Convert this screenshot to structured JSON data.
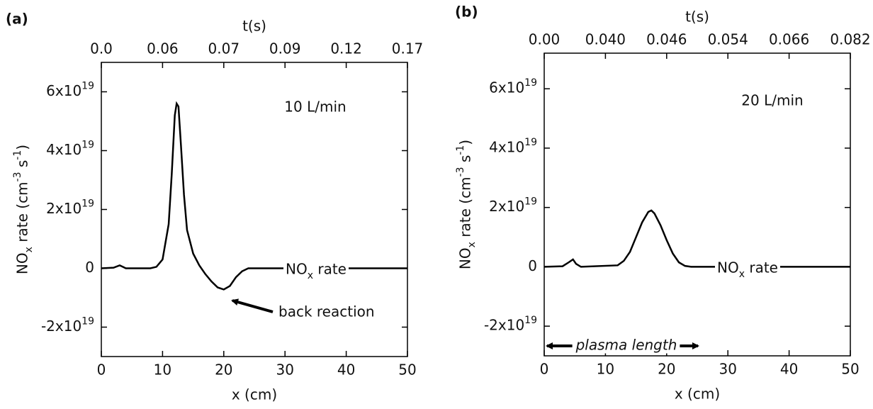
{
  "chart_data": [
    {
      "type": "line",
      "panel_label": "(a)",
      "xlabel": "x (cm)",
      "ylabel": "NO_x rate (cm^-3 s^-1)",
      "x2label": "t(s)",
      "x": [
        0,
        2,
        3,
        3.5,
        4,
        8,
        9,
        10,
        11,
        11.5,
        12,
        12.3,
        12.6,
        13,
        13.5,
        14,
        15,
        16,
        17,
        18,
        19,
        20,
        21,
        22,
        23,
        24,
        25,
        50
      ],
      "series": [
        {
          "name": "NO_x rate",
          "color": "#000000",
          "values": [
            0,
            2e+17,
            1e+18,
            5e+17,
            0,
            0,
            5e+17,
            3e+18,
            1.5e+19,
            3.2e+19,
            5.2e+19,
            5.6e+19,
            5.5e+19,
            4.2e+19,
            2.5e+19,
            1.3e+19,
            5e+18,
            1e+18,
            -2e+18,
            -4.5e+18,
            -6.5e+18,
            -7.2e+18,
            -6e+18,
            -3e+18,
            -1e+18,
            0,
            0,
            0
          ]
        }
      ],
      "xlim": [
        0,
        50
      ],
      "xticks": [
        0,
        10,
        20,
        30,
        40,
        50
      ],
      "x2tick_labels": [
        "0.0",
        "0.06",
        "0.07",
        "0.09",
        "0.12",
        "0.17"
      ],
      "ylim": [
        -3e+19,
        7e+19
      ],
      "yticks": [
        {
          "value": -2e+19,
          "label": "-2x10^19"
        },
        {
          "value": 0,
          "label": "0"
        },
        {
          "value": 2e+19,
          "label": "2x10^19"
        },
        {
          "value": 4e+19,
          "label": "4x10^19"
        },
        {
          "value": 6e+19,
          "label": "6x10^19"
        }
      ],
      "annotations": [
        "10 L/min",
        "back reaction"
      ]
    },
    {
      "type": "line",
      "panel_label": "(b)",
      "xlabel": "x (cm)",
      "ylabel": "NO_x rate (cm^-3 s^-1)",
      "x2label": "t(s)",
      "x": [
        0,
        3,
        4,
        4.7,
        5.2,
        6,
        12,
        13,
        14,
        15,
        16,
        17,
        17.5,
        18,
        19,
        20,
        21,
        22,
        23,
        24,
        50
      ],
      "series": [
        {
          "name": "NO_x rate",
          "color": "#000000",
          "values": [
            0,
            2e+17,
            1.5e+18,
            2.5e+18,
            1e+18,
            0,
            5e+17,
            2e+18,
            5e+18,
            1e+19,
            1.5e+19,
            1.85e+19,
            1.9e+19,
            1.8e+19,
            1.4e+19,
            9e+18,
            4.5e+18,
            1.5e+18,
            3e+17,
            0,
            0
          ]
        }
      ],
      "xlim": [
        0,
        50
      ],
      "xticks": [
        0,
        10,
        20,
        30,
        40,
        50
      ],
      "x2tick_labels": [
        "0.00",
        "0.040",
        "0.046",
        "0.054",
        "0.066",
        "0.082"
      ],
      "ylim": [
        -3e+19,
        7.2e+19
      ],
      "yticks": [
        {
          "value": -2e+19,
          "label": "-2x10^19"
        },
        {
          "value": 0,
          "label": "0"
        },
        {
          "value": 2e+19,
          "label": "2x10^19"
        },
        {
          "value": 4e+19,
          "label": "4x10^19"
        },
        {
          "value": 6e+19,
          "label": "6x10^19"
        }
      ],
      "annotations": [
        "20 L/min",
        "plasma length"
      ]
    }
  ]
}
